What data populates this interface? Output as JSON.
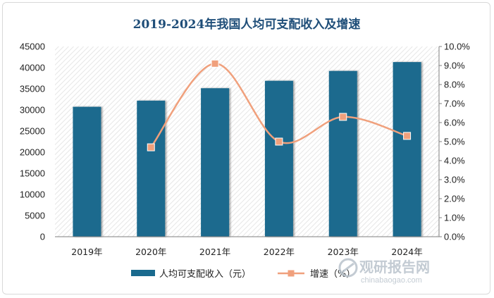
{
  "chart_data": {
    "type": "bar",
    "title": "2019-2024年我国人均可支配收入及增速",
    "categories": [
      "2019年",
      "2020年",
      "2021年",
      "2022年",
      "2023年",
      "2024年"
    ],
    "series": [
      {
        "name": "人均可支配收入（元）",
        "type": "bar",
        "axis": "left",
        "values": [
          30733,
          32189,
          35128,
          36883,
          39218,
          41314
        ],
        "color": "#1a6a8e"
      },
      {
        "name": "增速（%）",
        "type": "line",
        "axis": "right",
        "values": [
          null,
          4.7,
          9.1,
          5.0,
          6.3,
          5.3
        ],
        "color": "#f0a07c"
      }
    ],
    "y_left": {
      "ylim": [
        0,
        45000
      ],
      "ticks": [
        "0",
        "5000",
        "10000",
        "15000",
        "20000",
        "25000",
        "30000",
        "35000",
        "40000",
        "45000"
      ]
    },
    "y_right": {
      "ylim": [
        0,
        10
      ],
      "ticks": [
        "0.0%",
        "1.0%",
        "2.0%",
        "3.0%",
        "4.0%",
        "5.0%",
        "6.0%",
        "7.0%",
        "8.0%",
        "9.0%",
        "10.0%"
      ]
    },
    "grid": false,
    "legend": "bottom"
  },
  "watermark": {
    "cn": "观研报告网",
    "en": "chinabaogao.com"
  }
}
